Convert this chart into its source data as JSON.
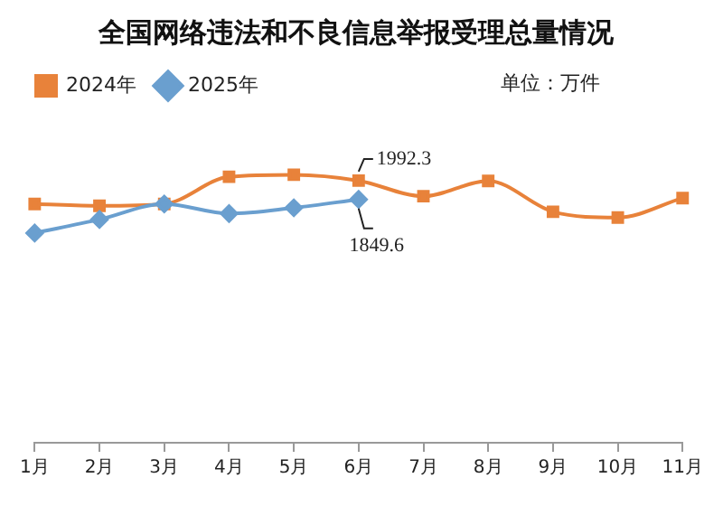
{
  "chart_data": {
    "type": "line",
    "title": "全国网络违法和不良信息举报受理总量情况",
    "categories": [
      "1月",
      "2月",
      "3月",
      "4月",
      "5月",
      "6月",
      "7月",
      "8月",
      "9月",
      "10月",
      "11月"
    ],
    "tick_labels": "x",
    "series": [
      {
        "name": "2024年",
        "color": "#e8823a",
        "marker": "square",
        "values": [
          1815,
          1801,
          1815,
          2022,
          2037,
          1992.3,
          1874,
          1990,
          1756,
          1712,
          1860
        ],
        "value_labels": [
          null,
          null,
          null,
          null,
          null,
          "1992.3",
          null,
          null,
          null,
          null,
          null
        ]
      },
      {
        "name": "2025年",
        "color": "#6a9fcf",
        "marker": "diamond",
        "values": [
          1594,
          1697,
          1815,
          1742,
          1786,
          1849.6,
          null,
          null,
          null,
          null,
          null
        ],
        "value_labels": [
          null,
          null,
          null,
          null,
          null,
          "1849.6",
          null,
          null,
          null,
          null,
          null
        ]
      }
    ],
    "legend": "top",
    "annotations": [
      "单位：万件"
    ],
    "grid": false
  }
}
